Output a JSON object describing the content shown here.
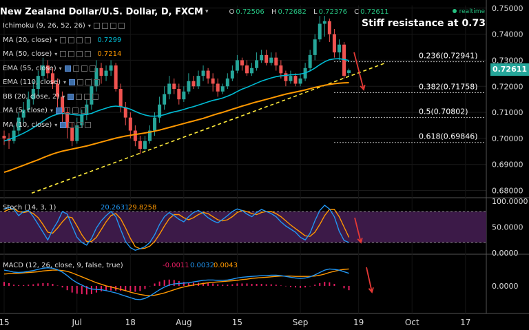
{
  "header": {
    "symbol": "New Zealand Dollar/U.S. Dollar, D, FXCM",
    "dropdown": "▾",
    "open_k": "O",
    "open": "0.72506",
    "high_k": "H",
    "high": "0.72682",
    "low_k": "L",
    "low": "0.72376",
    "close_k": "C",
    "close": "0.72611",
    "realtime": "realtime"
  },
  "indicators": [
    {
      "label": "Ichimoku (9, 26, 52, 26)",
      "value": "",
      "color": "#ddd"
    },
    {
      "label": "MA (20, close)",
      "value": "0.7299",
      "color": "#00bcd4"
    },
    {
      "label": "MA (50, close)",
      "value": "0.7214",
      "color": "#ff9800"
    },
    {
      "label": "EMA (55, close)",
      "value": "",
      "color": "#ddd"
    },
    {
      "label": "EMA (110, close)",
      "value": "",
      "color": "#ddd"
    },
    {
      "label": "BB (20, close, 2)",
      "value": "",
      "color": "#ddd"
    },
    {
      "label": "MA (5, close)",
      "value": "",
      "color": "#ddd"
    },
    {
      "label": "MA (10, close)",
      "value": "",
      "color": "#ddd"
    }
  ],
  "annotation": "Stiff resistance at 0.73",
  "last_price": "0.72611",
  "colors": {
    "up": "#26a69a",
    "down": "#ef5350",
    "ma20": "#00bcd4",
    "ma50": "#ff9800",
    "trendline": "#ffeb3b",
    "stoch_k": "#2196f3",
    "stoch_d": "#ff9800",
    "stoch_band": "#3c1a48",
    "macd_hist": "#e91e63",
    "arrow": "#e53935"
  },
  "chart_data": {
    "type": "candlestick",
    "price_axis": {
      "ticks": [
        "0.75000",
        "0.74000",
        "0.73000",
        "0.72000",
        "0.71000",
        "0.70000",
        "0.69000",
        "0.68000"
      ],
      "ylim": [
        0.6775,
        0.751
      ]
    },
    "x_ticks": [
      "15",
      "Jul",
      "18",
      "Aug",
      "15",
      "Sep",
      "19",
      "Oct",
      "17"
    ],
    "fibonacci": [
      {
        "label": "0.236(0.72941)",
        "value": 0.72941
      },
      {
        "label": "0.382(0.71758)",
        "value": 0.71758
      },
      {
        "label": "0.5(0.70802)",
        "value": 0.70802
      },
      {
        "label": "0.618(0.69846)",
        "value": 0.69846
      }
    ],
    "candles": [
      [
        0.701,
        0.7,
        0.6975,
        0.703
      ],
      [
        0.7,
        0.699,
        0.696,
        0.702
      ],
      [
        0.699,
        0.703,
        0.698,
        0.705
      ],
      [
        0.703,
        0.708,
        0.701,
        0.71
      ],
      [
        0.708,
        0.711,
        0.706,
        0.714
      ],
      [
        0.711,
        0.715,
        0.71,
        0.718
      ],
      [
        0.715,
        0.719,
        0.713,
        0.722
      ],
      [
        0.719,
        0.724,
        0.716,
        0.726
      ],
      [
        0.724,
        0.728,
        0.722,
        0.731
      ],
      [
        0.728,
        0.725,
        0.723,
        0.73
      ],
      [
        0.725,
        0.721,
        0.719,
        0.727
      ],
      [
        0.721,
        0.716,
        0.712,
        0.723
      ],
      [
        0.716,
        0.71,
        0.706,
        0.718
      ],
      [
        0.71,
        0.704,
        0.7,
        0.712
      ],
      [
        0.704,
        0.699,
        0.697,
        0.706
      ],
      [
        0.699,
        0.705,
        0.698,
        0.708
      ],
      [
        0.705,
        0.709,
        0.704,
        0.711
      ],
      [
        0.709,
        0.713,
        0.707,
        0.715
      ],
      [
        0.713,
        0.72,
        0.711,
        0.723
      ],
      [
        0.72,
        0.727,
        0.718,
        0.73
      ],
      [
        0.727,
        0.724,
        0.721,
        0.729
      ],
      [
        0.724,
        0.726,
        0.722,
        0.728
      ],
      [
        0.726,
        0.728,
        0.724,
        0.73
      ],
      [
        0.728,
        0.719,
        0.718,
        0.729
      ],
      [
        0.719,
        0.712,
        0.71,
        0.721
      ],
      [
        0.712,
        0.708,
        0.705,
        0.714
      ],
      [
        0.708,
        0.703,
        0.7,
        0.71
      ],
      [
        0.703,
        0.699,
        0.697,
        0.705
      ],
      [
        0.699,
        0.696,
        0.694,
        0.701
      ],
      [
        0.696,
        0.699,
        0.695,
        0.701
      ],
      [
        0.699,
        0.703,
        0.698,
        0.705
      ],
      [
        0.703,
        0.708,
        0.701,
        0.71
      ],
      [
        0.708,
        0.713,
        0.706,
        0.716
      ],
      [
        0.713,
        0.717,
        0.711,
        0.72
      ],
      [
        0.717,
        0.721,
        0.715,
        0.724
      ],
      [
        0.721,
        0.719,
        0.717,
        0.723
      ],
      [
        0.719,
        0.715,
        0.713,
        0.721
      ],
      [
        0.715,
        0.718,
        0.714,
        0.72
      ],
      [
        0.718,
        0.722,
        0.717,
        0.725
      ],
      [
        0.722,
        0.72,
        0.719,
        0.724
      ],
      [
        0.72,
        0.724,
        0.719,
        0.726
      ],
      [
        0.724,
        0.726,
        0.722,
        0.728
      ],
      [
        0.726,
        0.723,
        0.721,
        0.727
      ],
      [
        0.723,
        0.721,
        0.718,
        0.725
      ],
      [
        0.721,
        0.718,
        0.716,
        0.723
      ],
      [
        0.718,
        0.72,
        0.717,
        0.721
      ],
      [
        0.72,
        0.723,
        0.719,
        0.725
      ],
      [
        0.723,
        0.726,
        0.722,
        0.728
      ],
      [
        0.726,
        0.73,
        0.725,
        0.732
      ],
      [
        0.73,
        0.728,
        0.726,
        0.731
      ],
      [
        0.728,
        0.725,
        0.724,
        0.73
      ],
      [
        0.725,
        0.727,
        0.724,
        0.729
      ],
      [
        0.727,
        0.73,
        0.726,
        0.733
      ],
      [
        0.73,
        0.732,
        0.729,
        0.734
      ],
      [
        0.732,
        0.729,
        0.728,
        0.734
      ],
      [
        0.729,
        0.731,
        0.728,
        0.733
      ],
      [
        0.731,
        0.728,
        0.726,
        0.733
      ],
      [
        0.728,
        0.725,
        0.723,
        0.73
      ],
      [
        0.725,
        0.722,
        0.72,
        0.726
      ],
      [
        0.722,
        0.724,
        0.721,
        0.726
      ],
      [
        0.724,
        0.721,
        0.72,
        0.725
      ],
      [
        0.721,
        0.723,
        0.72,
        0.725
      ],
      [
        0.723,
        0.727,
        0.722,
        0.729
      ],
      [
        0.727,
        0.732,
        0.726,
        0.734
      ],
      [
        0.732,
        0.738,
        0.73,
        0.74
      ],
      [
        0.738,
        0.744,
        0.737,
        0.747
      ],
      [
        0.744,
        0.745,
        0.739,
        0.747
      ],
      [
        0.745,
        0.74,
        0.737,
        0.746
      ],
      [
        0.74,
        0.733,
        0.731,
        0.742
      ],
      [
        0.733,
        0.736,
        0.73,
        0.738
      ],
      [
        0.736,
        0.724,
        0.723,
        0.737
      ],
      [
        0.7251,
        0.7261,
        0.7238,
        0.7268
      ]
    ],
    "ma20": [
      0.699,
      0.6996,
      0.7003,
      0.7011,
      0.702,
      0.703,
      0.7041,
      0.7053,
      0.7066,
      0.7078,
      0.7087,
      0.7093,
      0.7096,
      0.7095,
      0.7092,
      0.709,
      0.709,
      0.7092,
      0.7096,
      0.7104,
      0.711,
      0.7116,
      0.7122,
      0.7124,
      0.7122,
      0.7118,
      0.7112,
      0.7104,
      0.7096,
      0.709,
      0.7086,
      0.7085,
      0.7087,
      0.7091,
      0.7097,
      0.7102,
      0.7106,
      0.7111,
      0.7117,
      0.7122,
      0.7128,
      0.7134,
      0.714,
      0.7146,
      0.715,
      0.7155,
      0.7162,
      0.717,
      0.718,
      0.7189,
      0.7196,
      0.7204,
      0.7212,
      0.722,
      0.7226,
      0.7232,
      0.7237,
      0.724,
      0.7242,
      0.7244,
      0.7245,
      0.7247,
      0.7251,
      0.7259,
      0.727,
      0.7283,
      0.7294,
      0.7302,
      0.7305,
      0.7306,
      0.7303,
      0.7299
    ],
    "ma50": [
      0.687,
      0.6876,
      0.6883,
      0.689,
      0.6897,
      0.6904,
      0.6911,
      0.6918,
      0.6926,
      0.6933,
      0.694,
      0.6946,
      0.6951,
      0.6955,
      0.6959,
      0.6963,
      0.6967,
      0.6971,
      0.6976,
      0.6981,
      0.6986,
      0.6991,
      0.6996,
      0.7001,
      0.7005,
      0.7009,
      0.7012,
      0.7015,
      0.7018,
      0.7021,
      0.7024,
      0.7028,
      0.7032,
      0.7037,
      0.7042,
      0.7047,
      0.7052,
      0.7057,
      0.7062,
      0.7067,
      0.7072,
      0.7077,
      0.7083,
      0.7089,
      0.7095,
      0.71,
      0.7106,
      0.7112,
      0.7118,
      0.7124,
      0.7129,
      0.7135,
      0.714,
      0.7145,
      0.715,
      0.7155,
      0.716,
      0.7165,
      0.717,
      0.7174,
      0.7178,
      0.7182,
      0.7186,
      0.7191,
      0.7196,
      0.72,
      0.7204,
      0.7207,
      0.721,
      0.7212,
      0.7213,
      0.7214
    ],
    "trendline": [
      [
        0,
        0.679
      ],
      [
        72,
        0.724
      ]
    ],
    "stoch": {
      "label": "Stoch (14, 3, 1)",
      "k_value": "20.2631",
      "d_value": "29.8258",
      "ticks": [
        "100.0000",
        "50.0000",
        "0.0000"
      ],
      "ylim": [
        0,
        100
      ],
      "band": [
        20,
        80
      ],
      "k": [
        85,
        88,
        84,
        72,
        80,
        82,
        70,
        55,
        40,
        25,
        45,
        60,
        80,
        75,
        52,
        30,
        20,
        15,
        28,
        48,
        62,
        72,
        80,
        70,
        45,
        22,
        10,
        5,
        8,
        12,
        20,
        35,
        55,
        70,
        78,
        72,
        65,
        60,
        70,
        78,
        82,
        76,
        68,
        62,
        58,
        65,
        72,
        80,
        85,
        82,
        75,
        70,
        78,
        84,
        80,
        76,
        70,
        60,
        52,
        46,
        40,
        30,
        25,
        38,
        62,
        82,
        92,
        85,
        70,
        42,
        24,
        20
      ],
      "d": [
        80,
        84,
        85,
        80,
        78,
        80,
        76,
        68,
        55,
        40,
        38,
        48,
        60,
        70,
        68,
        52,
        35,
        22,
        22,
        30,
        45,
        60,
        72,
        76,
        66,
        48,
        28,
        12,
        8,
        9,
        13,
        22,
        36,
        52,
        66,
        74,
        74,
        68,
        64,
        68,
        74,
        78,
        76,
        70,
        64,
        62,
        64,
        70,
        78,
        82,
        80,
        76,
        74,
        78,
        80,
        80,
        76,
        70,
        62,
        54,
        47,
        40,
        33,
        32,
        40,
        55,
        72,
        84,
        84,
        70,
        50,
        30
      ]
    },
    "macd": {
      "label": "MACD (12, 26, close, 9, false, true)",
      "hist_value": "-0.0011",
      "macd_value": "0.0032",
      "signal_value": "0.0043",
      "ticks": [
        "0.0000"
      ],
      "ylim": [
        -0.0065,
        0.007
      ],
      "macd": [
        0.004,
        0.0038,
        0.0035,
        0.0034,
        0.0035,
        0.0037,
        0.0039,
        0.0042,
        0.0045,
        0.0046,
        0.0045,
        0.0041,
        0.0035,
        0.0026,
        0.0016,
        0.0008,
        0.0002,
        -0.0004,
        -0.0008,
        -0.0009,
        -0.001,
        -0.0012,
        -0.0015,
        -0.0018,
        -0.0022,
        -0.0026,
        -0.003,
        -0.0034,
        -0.0035,
        -0.0032,
        -0.0026,
        -0.0018,
        -0.001,
        -0.0003,
        0.0002,
        0.0005,
        0.0006,
        0.0007,
        0.0008,
        0.001,
        0.0012,
        0.0014,
        0.0015,
        0.0015,
        0.0014,
        0.0014,
        0.0015,
        0.0017,
        0.002,
        0.0022,
        0.0023,
        0.0024,
        0.0025,
        0.0026,
        0.0026,
        0.0027,
        0.0027,
        0.0026,
        0.0024,
        0.0022,
        0.002,
        0.0019,
        0.002,
        0.0023,
        0.0028,
        0.0034,
        0.004,
        0.0043,
        0.0042,
        0.004,
        0.0036,
        0.0032
      ],
      "signal": [
        0.003,
        0.0031,
        0.0032,
        0.0032,
        0.0033,
        0.0034,
        0.0035,
        0.0036,
        0.0038,
        0.0039,
        0.004,
        0.004,
        0.0039,
        0.0037,
        0.0033,
        0.0028,
        0.0023,
        0.0018,
        0.0013,
        0.0008,
        0.0004,
        0.0,
        -0.0003,
        -0.0006,
        -0.0009,
        -0.0012,
        -0.0016,
        -0.0019,
        -0.0022,
        -0.0024,
        -0.0025,
        -0.0024,
        -0.0021,
        -0.0018,
        -0.0014,
        -0.001,
        -0.0006,
        -0.0003,
        0.0,
        0.0002,
        0.0004,
        0.0006,
        0.0008,
        0.0009,
        0.001,
        0.0011,
        0.0012,
        0.0013,
        0.0014,
        0.0016,
        0.0017,
        0.0019,
        0.002,
        0.0021,
        0.0022,
        0.0023,
        0.0024,
        0.0025,
        0.0025,
        0.0025,
        0.0024,
        0.0024,
        0.0024,
        0.0024,
        0.0025,
        0.0027,
        0.003,
        0.0034,
        0.0037,
        0.004,
        0.0042,
        0.0043
      ],
      "hist": [
        0.001,
        0.0007,
        0.0003,
        0.0002,
        0.0002,
        0.0003,
        0.0004,
        0.0006,
        0.0007,
        0.0007,
        0.0005,
        0.0001,
        -0.0004,
        -0.0011,
        -0.0017,
        -0.002,
        -0.0021,
        -0.0022,
        -0.0021,
        -0.0017,
        -0.0014,
        -0.0012,
        -0.0012,
        -0.0012,
        -0.0013,
        -0.0014,
        -0.0014,
        -0.0015,
        -0.0013,
        -0.0008,
        -0.0001,
        0.0006,
        0.0011,
        0.0015,
        0.0016,
        0.0015,
        0.0012,
        0.001,
        0.0008,
        0.0008,
        0.0008,
        0.0008,
        0.0007,
        0.0006,
        0.0004,
        0.0003,
        0.0003,
        0.0004,
        0.0006,
        0.0006,
        0.0006,
        0.0005,
        0.0005,
        0.0005,
        0.0004,
        0.0004,
        0.0003,
        0.0001,
        -0.0001,
        -0.0003,
        -0.0004,
        -0.0005,
        -0.0004,
        -0.0001,
        0.0003,
        0.0007,
        0.001,
        0.0009,
        0.0005,
        0.0,
        -0.0006,
        -0.0011
      ]
    }
  }
}
